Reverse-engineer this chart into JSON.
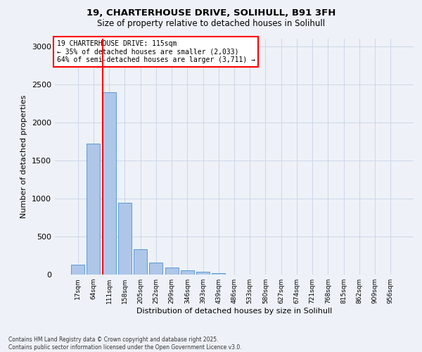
{
  "title_line1": "19, CHARTERHOUSE DRIVE, SOLIHULL, B91 3FH",
  "title_line2": "Size of property relative to detached houses in Solihull",
  "xlabel": "Distribution of detached houses by size in Solihull",
  "ylabel": "Number of detached properties",
  "categories": [
    "17sqm",
    "64sqm",
    "111sqm",
    "158sqm",
    "205sqm",
    "252sqm",
    "299sqm",
    "346sqm",
    "393sqm",
    "439sqm",
    "486sqm",
    "533sqm",
    "580sqm",
    "627sqm",
    "674sqm",
    "721sqm",
    "768sqm",
    "815sqm",
    "862sqm",
    "909sqm",
    "956sqm"
  ],
  "bar_heights": [
    130,
    1720,
    2400,
    940,
    335,
    155,
    90,
    55,
    40,
    20,
    0,
    0,
    0,
    0,
    0,
    0,
    0,
    0,
    0,
    0,
    0
  ],
  "bar_color": "#aec6e8",
  "bar_edge_color": "#5b9bd5",
  "grid_color": "#d0d8e8",
  "background_color": "#eef2f8",
  "ylim": [
    0,
    3100
  ],
  "yticks": [
    0,
    500,
    1000,
    1500,
    2000,
    2500,
    3000
  ],
  "red_line_index": 2,
  "annotation_title": "19 CHARTERHOUSE DRIVE: 115sqm",
  "annotation_line1": "← 35% of detached houses are smaller (2,033)",
  "annotation_line2": "64% of semi-detached houses are larger (3,711) →",
  "footer_line1": "Contains HM Land Registry data © Crown copyright and database right 2025.",
  "footer_line2": "Contains public sector information licensed under the Open Government Licence v3.0."
}
